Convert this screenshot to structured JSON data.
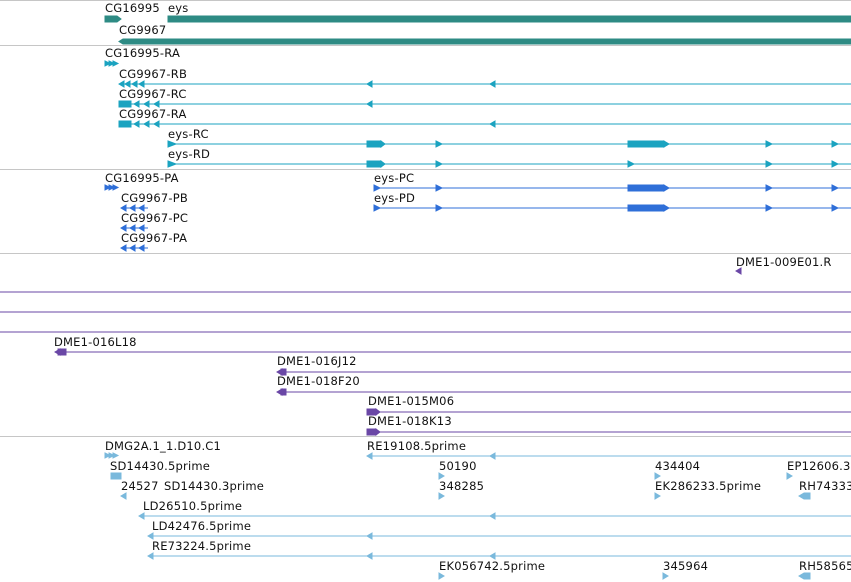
{
  "colors": {
    "gene": "#2e8b84",
    "mrna": "#1ba3c0",
    "cds": "#2f6fd8",
    "clone": "#6a47a6",
    "est": "#7ab9dc",
    "separator": "#c6c6c6"
  },
  "tracks": {
    "genes": {
      "labels": [
        "CG16995",
        "eys",
        "CG9967"
      ]
    },
    "transcripts": {
      "labels": [
        "CG16995-RA",
        "CG9967-RB",
        "CG9967-RC",
        "CG9967-RA",
        "eys-RC",
        "eys-RD"
      ]
    },
    "proteins": {
      "labels": [
        "CG16995-PA",
        "eys-PC",
        "CG9967-PB",
        "eys-PD",
        "CG9967-PC",
        "CG9967-PA"
      ]
    },
    "clones_primary": {
      "labels": [
        "DME1-009E01.R"
      ]
    },
    "clones_secondary": {
      "labels": [
        "DME1-016L18",
        "DME1-016J12",
        "DME1-018F20",
        "DME1-015M06",
        "DME1-018K13"
      ]
    },
    "ests": {
      "labels": [
        "DMG2A.1_1.D10.C1",
        "RE19108.5prime",
        "SD14430.5prime",
        "50190",
        "434404",
        "EP12606.3",
        "24527",
        "SD14430.3prime",
        "348285",
        "EK286233.5prime",
        "RH74333",
        "LD26510.5prime",
        "LD42476.5prime",
        "RE73224.5prime",
        "EK056742.5prime",
        "345964",
        "RH58565"
      ]
    }
  }
}
